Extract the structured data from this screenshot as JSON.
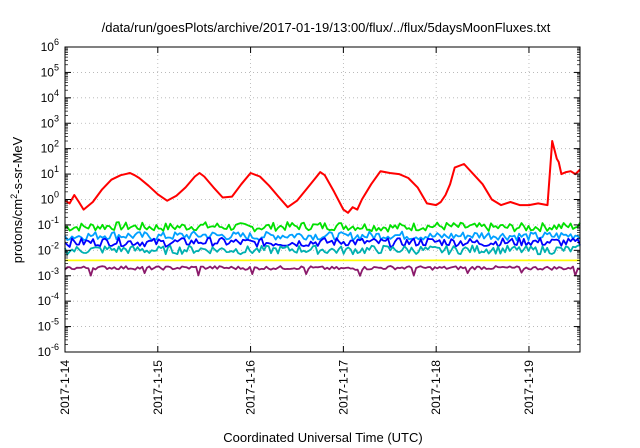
{
  "chart_data": {
    "type": "line",
    "title": "/data/run/goesPlots/archive/2017-01-19/13:00/flux/../flux/5daysMoonFluxes.txt",
    "xlabel": "Coordinated Universal Time (UTC)",
    "ylabel": {
      "pre": "protons/cm",
      "sup": "2",
      "post": "-s-sr-MeV"
    },
    "yscale": "log",
    "ylim_exponents": [
      -6,
      6
    ],
    "y_ticks": [
      {
        "base": "10",
        "exp": "-6"
      },
      {
        "base": "10",
        "exp": "-5"
      },
      {
        "base": "10",
        "exp": "-4"
      },
      {
        "base": "10",
        "exp": "-3"
      },
      {
        "base": "10",
        "exp": "-2"
      },
      {
        "base": "10",
        "exp": "-1"
      },
      {
        "base": "10",
        "exp": "0"
      },
      {
        "base": "10",
        "exp": "1"
      },
      {
        "base": "10",
        "exp": "2"
      },
      {
        "base": "10",
        "exp": "3"
      },
      {
        "base": "10",
        "exp": "4"
      },
      {
        "base": "10",
        "exp": "5"
      },
      {
        "base": "10",
        "exp": "6"
      }
    ],
    "x_ticks": [
      "2017-1-14",
      "2017-1-15",
      "2017-1-16",
      "2017-1-17",
      "2017-1-18",
      "2017-1-19"
    ],
    "xlim_days": [
      0,
      5.55
    ],
    "grid": true,
    "legend": "none",
    "series": [
      {
        "color": "#ff0000",
        "x_days": [
          0,
          0.05,
          0.1,
          0.15,
          0.2,
          0.3,
          0.4,
          0.5,
          0.6,
          0.7,
          0.75,
          0.8,
          0.9,
          1.0,
          1.1,
          1.2,
          1.3,
          1.4,
          1.45,
          1.5,
          1.6,
          1.7,
          1.8,
          1.9,
          2.0,
          2.1,
          2.2,
          2.3,
          2.4,
          2.5,
          2.6,
          2.7,
          2.75,
          2.8,
          2.9,
          3.0,
          3.05,
          3.1,
          3.15,
          3.2,
          3.3,
          3.4,
          3.5,
          3.6,
          3.7,
          3.8,
          3.9,
          4.0,
          4.05,
          4.1,
          4.15,
          4.2,
          4.3,
          4.4,
          4.5,
          4.55,
          4.6,
          4.7,
          4.8,
          4.9,
          5.0,
          5.1,
          5.2,
          5.25,
          5.3,
          5.32,
          5.35,
          5.4,
          5.45,
          5.5,
          5.55
        ],
        "values": [
          0.9,
          0.7,
          1.5,
          0.8,
          0.4,
          0.8,
          2.5,
          6,
          9,
          11,
          9,
          7,
          3.5,
          1.6,
          0.9,
          1.4,
          3,
          8,
          11,
          8,
          3,
          1.2,
          1.3,
          4,
          11,
          8,
          3.5,
          1.3,
          0.5,
          0.9,
          2.5,
          7,
          12,
          9,
          2,
          0.4,
          0.3,
          0.5,
          0.4,
          1,
          4,
          13,
          11,
          10,
          7,
          3,
          0.7,
          0.6,
          0.8,
          1.5,
          4,
          18,
          25,
          10,
          4,
          2,
          1,
          0.6,
          0.8,
          0.6,
          0.6,
          0.7,
          0.6,
          200,
          40,
          30,
          10,
          12,
          13,
          10,
          15
        ]
      },
      {
        "color": "#00e000",
        "x_days": [
          0,
          0.5,
          1,
          1.5,
          2,
          2.5,
          3,
          3.5,
          4,
          4.5,
          5,
          5.55
        ],
        "values": [
          0.08,
          0.09,
          0.08,
          0.09,
          0.08,
          0.09,
          0.09,
          0.08,
          0.09,
          0.08,
          0.08,
          0.09
        ]
      },
      {
        "color": "#00a0ff",
        "x_days": [
          0,
          0.5,
          1,
          1.5,
          2,
          2.5,
          3,
          3.5,
          4,
          4.5,
          5,
          5.55
        ],
        "values": [
          0.035,
          0.04,
          0.035,
          0.04,
          0.035,
          0.04,
          0.035,
          0.04,
          0.035,
          0.04,
          0.035,
          0.04
        ]
      },
      {
        "color": "#0000ff",
        "x_days": [
          0,
          0.5,
          1,
          1.5,
          2,
          2.5,
          3,
          3.5,
          4,
          4.5,
          5,
          5.55
        ],
        "values": [
          0.02,
          0.022,
          0.02,
          0.022,
          0.02,
          0.02,
          0.022,
          0.02,
          0.022,
          0.02,
          0.022,
          0.02
        ]
      },
      {
        "color": "#00b0b0",
        "x_days": [
          0,
          0.5,
          1,
          1.5,
          2,
          2.5,
          3,
          3.5,
          4,
          4.5,
          5,
          5.55
        ],
        "values": [
          0.01,
          0.011,
          0.01,
          0.011,
          0.01,
          0.011,
          0.01,
          0.011,
          0.01,
          0.011,
          0.01,
          0.011
        ]
      },
      {
        "color": "#ffff00",
        "x_days": [
          0,
          5.55
        ],
        "values": [
          0.004,
          0.004
        ]
      },
      {
        "color": "#8b1a6b",
        "x_days": [
          0,
          0.5,
          1,
          1.5,
          2,
          2.5,
          3,
          3.5,
          4,
          4.5,
          5,
          5.55
        ],
        "values": [
          0.002,
          0.0021,
          0.002,
          0.0021,
          0.002,
          0.0021,
          0.0019,
          0.0021,
          0.002,
          0.0021,
          0.002,
          0.002
        ]
      }
    ]
  }
}
